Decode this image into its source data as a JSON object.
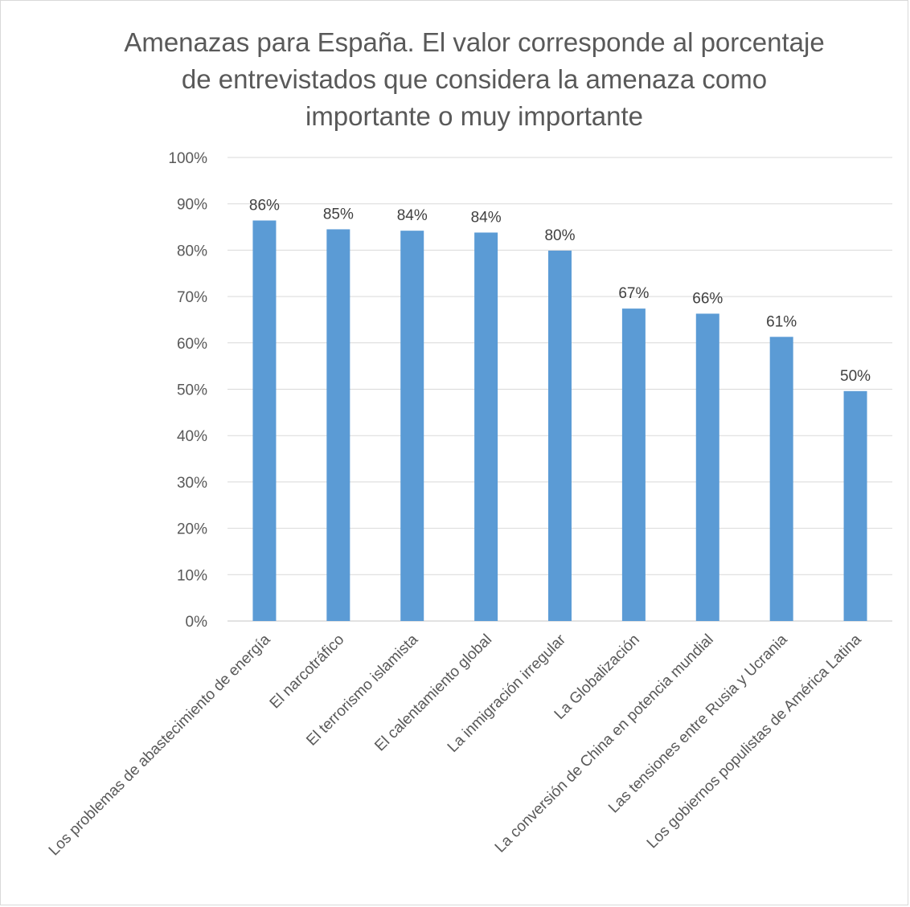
{
  "chart_data": {
    "type": "bar",
    "title": "Amenazas para España. El valor corresponde al porcentaje de entrevistados que considera la amenaza como importante o muy importante",
    "title_lines": [
      "Amenazas para España. El valor corresponde al porcentaje",
      "de entrevistados que considera la amenaza como",
      "importante o muy importante"
    ],
    "categories": [
      "Los problemas de abastecimiento de energía",
      "El narcotráfico",
      "El terrorismo islamista",
      "El calentamiento global",
      "La inmigración irregular",
      "La Globalización",
      "La conversión de China en potencia mundial",
      "Las tensiones entre Rusia y Ucrania",
      "Los gobiernos populistas de América Latina"
    ],
    "values": [
      86.4,
      84.5,
      84.2,
      83.8,
      79.9,
      67.4,
      66.3,
      61.3,
      49.6
    ],
    "data_labels": [
      "86%",
      "85%",
      "84%",
      "84%",
      "80%",
      "67%",
      "66%",
      "61%",
      "50%"
    ],
    "y_ticks": [
      0,
      10,
      20,
      30,
      40,
      50,
      60,
      70,
      80,
      90,
      100
    ],
    "y_tick_labels": [
      "0%",
      "10%",
      "20%",
      "30%",
      "40%",
      "50%",
      "60%",
      "70%",
      "80%",
      "90%",
      "100%"
    ],
    "ylim": [
      0,
      100
    ],
    "xlabel": "",
    "ylabel": "",
    "grid": true,
    "legend": "none",
    "colors": {
      "bar": "#5B9BD5",
      "grid": "#D9D9D9",
      "text": "#595959",
      "label": "#404040"
    }
  }
}
